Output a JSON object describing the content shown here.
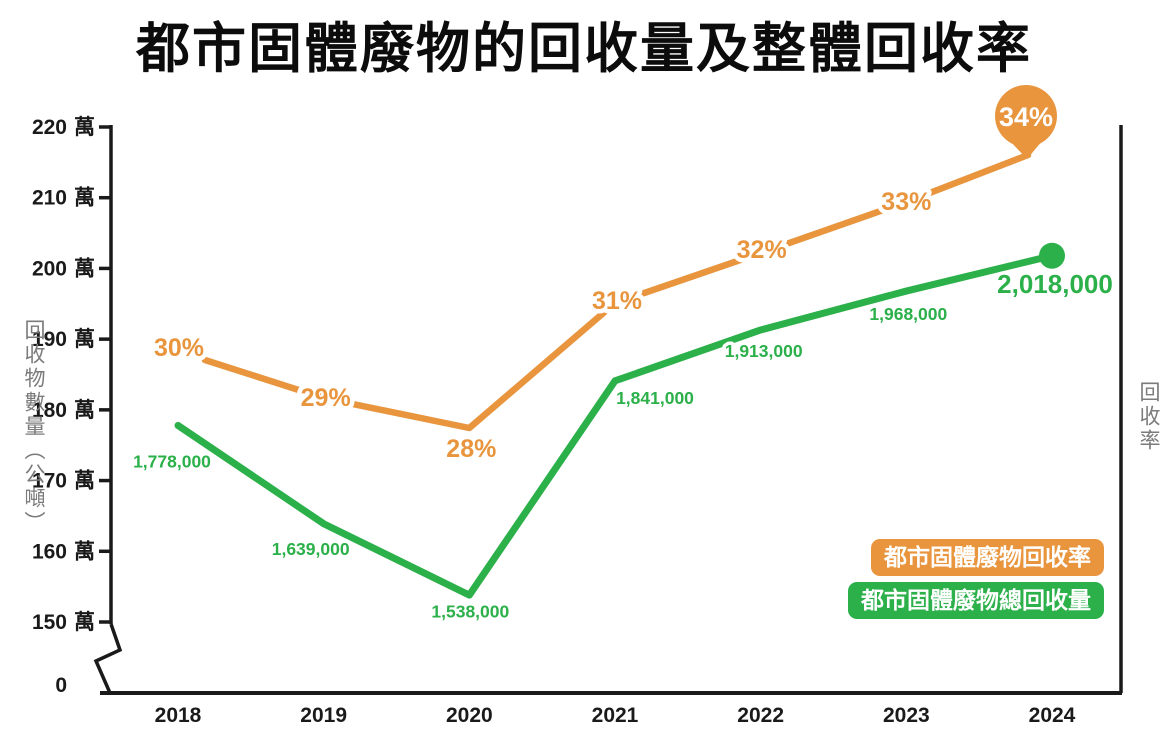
{
  "title": "都市固體廢物的回收量及整體回收率",
  "colors": {
    "rate": "#E8953E",
    "quantity": "#2BB04A",
    "axis": "#1a1a1a",
    "axis_title": "#7b7b7b"
  },
  "axes": {
    "left": {
      "label": "回收物數量（公噸）",
      "ticks": [
        {
          "num": "220",
          "unit": "萬"
        },
        {
          "num": "210",
          "unit": "萬"
        },
        {
          "num": "200",
          "unit": "萬"
        },
        {
          "num": "190",
          "unit": "萬"
        },
        {
          "num": "180",
          "unit": "萬"
        },
        {
          "num": "170",
          "unit": "萬"
        },
        {
          "num": "160",
          "unit": "萬"
        },
        {
          "num": "150",
          "unit": "萬"
        },
        {
          "num": "0",
          "unit": ""
        }
      ]
    },
    "right": {
      "label": "回收率"
    },
    "x": {
      "ticks": [
        "2018",
        "2019",
        "2020",
        "2021",
        "2022",
        "2023",
        "2024"
      ]
    }
  },
  "legend": {
    "items": [
      {
        "label": "都市固體廢物回收率",
        "color": "#E8953E"
      },
      {
        "label": "都市固體廢物總回收量",
        "color": "#2BB04A"
      }
    ]
  },
  "chart_data": {
    "type": "line",
    "title": "都市固體廢物的回收量及整體回收率",
    "x": [
      "2018",
      "2019",
      "2020",
      "2021",
      "2022",
      "2023",
      "2024"
    ],
    "series": [
      {
        "name": "都市固體廢物回收率",
        "axis": "right",
        "unit": "percent",
        "color": "#E8953E",
        "values": [
          30,
          29,
          28,
          31,
          32,
          33,
          34
        ],
        "labels": [
          "30%",
          "29%",
          "28%",
          "31%",
          "32%",
          "33%",
          "34%"
        ]
      },
      {
        "name": "都市固體廢物總回收量",
        "axis": "left",
        "unit": "tonnes",
        "color": "#2BB04A",
        "values": [
          1778000,
          1639000,
          1538000,
          1841000,
          1913000,
          1968000,
          2018000
        ],
        "labels": [
          "1,778,000",
          "1,639,000",
          "1,538,000",
          "1,841,000",
          "1,913,000",
          "1,968,000",
          "2,018,000"
        ]
      }
    ],
    "left_axis": {
      "label": "回收物數量（公噸）",
      "tick_values_tonnes": [
        2200000,
        2100000,
        2000000,
        1900000,
        1800000,
        1700000,
        1600000,
        1500000,
        0
      ],
      "axis_break_between": [
        1500000,
        0
      ]
    },
    "right_axis": {
      "label": "回收率",
      "tick_labels_shown": false
    },
    "grid": false,
    "legend_position": "right-middle",
    "end_markers": {
      "rate": "balloon-pin",
      "quantity": "dot"
    }
  }
}
